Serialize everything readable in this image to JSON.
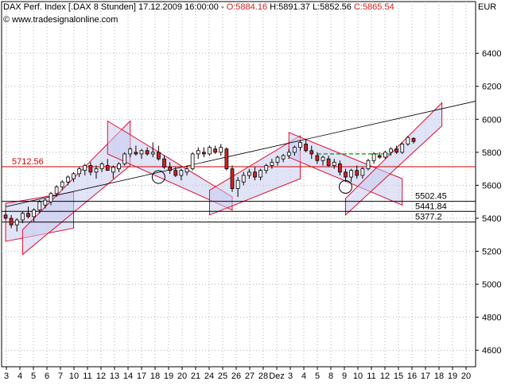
{
  "header": {
    "instrument": "DAX Perf. Index [.DAX  8 Stunden] 17.12.2009 16:00:00 - ",
    "open": "O:5884.16",
    "high": " H:5891.37",
    "low": " L:5852.56",
    "close": " C:5865.54",
    "source": "© www.tradesignalonline.com",
    "unit": "EUR"
  },
  "colors": {
    "up": "#ffffff",
    "down": "#d42020",
    "channel": "#e01030",
    "channel_fill": "#c8ccf0",
    "level_line": "#d00000",
    "support_line": "#000000",
    "trend_line": "#000000",
    "dashed_line": "#2fa02f",
    "grid": "#b0b0b0"
  },
  "chart_data": {
    "type": "candlestick",
    "ylim": [
      4500,
      6550
    ],
    "yticks": [
      4600,
      4800,
      5000,
      5200,
      5400,
      5600,
      5800,
      6000,
      6200,
      6400
    ],
    "xlabels": [
      "3",
      "4",
      "5",
      "6",
      "7",
      "10",
      "11",
      "12",
      "13",
      "14",
      "17",
      "18",
      "19",
      "20",
      "21",
      "24",
      "25",
      "26",
      "27",
      "28",
      "Dez",
      "3",
      "4",
      "5",
      "8",
      "9",
      "10",
      "11",
      "12",
      "15",
      "16",
      "17",
      "18",
      "19",
      "20"
    ],
    "levels": [
      {
        "label": "5712.56",
        "value": 5712.56
      },
      {
        "label": "5502.45",
        "value": 5502.45
      },
      {
        "label": "5441.84",
        "value": 5441.84
      },
      {
        "label": "5377.2",
        "value": 5377.2
      }
    ],
    "candles": [
      [
        5420,
        5450,
        5390,
        5400
      ],
      [
        5400,
        5420,
        5340,
        5360
      ],
      [
        5360,
        5400,
        5320,
        5390
      ],
      [
        5390,
        5440,
        5370,
        5430
      ],
      [
        5430,
        5470,
        5400,
        5410
      ],
      [
        5410,
        5460,
        5380,
        5450
      ],
      [
        5450,
        5510,
        5430,
        5500
      ],
      [
        5480,
        5520,
        5460,
        5510
      ],
      [
        5500,
        5560,
        5480,
        5550
      ],
      [
        5550,
        5600,
        5530,
        5590
      ],
      [
        5590,
        5630,
        5570,
        5620
      ],
      [
        5620,
        5660,
        5600,
        5650
      ],
      [
        5640,
        5680,
        5620,
        5670
      ],
      [
        5670,
        5710,
        5650,
        5700
      ],
      [
        5690,
        5730,
        5660,
        5720
      ],
      [
        5720,
        5740,
        5660,
        5680
      ],
      [
        5680,
        5720,
        5640,
        5700
      ],
      [
        5700,
        5740,
        5680,
        5730
      ],
      [
        5720,
        5760,
        5690,
        5690
      ],
      [
        5680,
        5720,
        5640,
        5710
      ],
      [
        5700,
        5740,
        5680,
        5730
      ],
      [
        5730,
        5800,
        5720,
        5790
      ],
      [
        5790,
        5830,
        5770,
        5820
      ],
      [
        5800,
        5840,
        5780,
        5790
      ],
      [
        5790,
        5820,
        5760,
        5810
      ],
      [
        5810,
        5830,
        5780,
        5790
      ],
      [
        5790,
        5860,
        5770,
        5800
      ],
      [
        5800,
        5840,
        5750,
        5760
      ],
      [
        5760,
        5780,
        5700,
        5710
      ],
      [
        5710,
        5740,
        5670,
        5690
      ],
      [
        5690,
        5710,
        5650,
        5660
      ],
      [
        5660,
        5700,
        5630,
        5690
      ],
      [
        5680,
        5720,
        5660,
        5700
      ],
      [
        5700,
        5800,
        5690,
        5790
      ],
      [
        5790,
        5830,
        5760,
        5810
      ],
      [
        5800,
        5830,
        5770,
        5790
      ],
      [
        5790,
        5840,
        5780,
        5830
      ],
      [
        5820,
        5840,
        5790,
        5800
      ],
      [
        5800,
        5850,
        5780,
        5830
      ],
      [
        5820,
        5830,
        5690,
        5700
      ],
      [
        5700,
        5720,
        5560,
        5580
      ],
      [
        5580,
        5650,
        5530,
        5630
      ],
      [
        5620,
        5680,
        5600,
        5660
      ],
      [
        5660,
        5700,
        5640,
        5680
      ],
      [
        5680,
        5710,
        5630,
        5650
      ],
      [
        5650,
        5700,
        5630,
        5690
      ],
      [
        5690,
        5730,
        5670,
        5720
      ],
      [
        5720,
        5760,
        5700,
        5740
      ],
      [
        5740,
        5780,
        5720,
        5770
      ],
      [
        5760,
        5790,
        5740,
        5780
      ],
      [
        5780,
        5820,
        5760,
        5800
      ],
      [
        5800,
        5840,
        5780,
        5830
      ],
      [
        5830,
        5870,
        5810,
        5860
      ],
      [
        5850,
        5880,
        5800,
        5810
      ],
      [
        5810,
        5840,
        5760,
        5790
      ],
      [
        5780,
        5800,
        5730,
        5750
      ],
      [
        5750,
        5780,
        5720,
        5770
      ],
      [
        5760,
        5780,
        5710,
        5720
      ],
      [
        5720,
        5760,
        5700,
        5740
      ],
      [
        5730,
        5750,
        5660,
        5680
      ],
      [
        5680,
        5700,
        5620,
        5650
      ],
      [
        5650,
        5700,
        5620,
        5690
      ],
      [
        5690,
        5720,
        5640,
        5660
      ],
      [
        5660,
        5710,
        5640,
        5700
      ],
      [
        5700,
        5760,
        5690,
        5750
      ],
      [
        5750,
        5800,
        5730,
        5790
      ],
      [
        5780,
        5800,
        5760,
        5770
      ],
      [
        5770,
        5810,
        5760,
        5800
      ],
      [
        5800,
        5830,
        5780,
        5820
      ],
      [
        5820,
        5840,
        5790,
        5800
      ],
      [
        5800,
        5860,
        5790,
        5850
      ],
      [
        5850,
        5900,
        5840,
        5890
      ],
      [
        5884.16,
        5891.37,
        5852.56,
        5865.54
      ]
    ]
  }
}
